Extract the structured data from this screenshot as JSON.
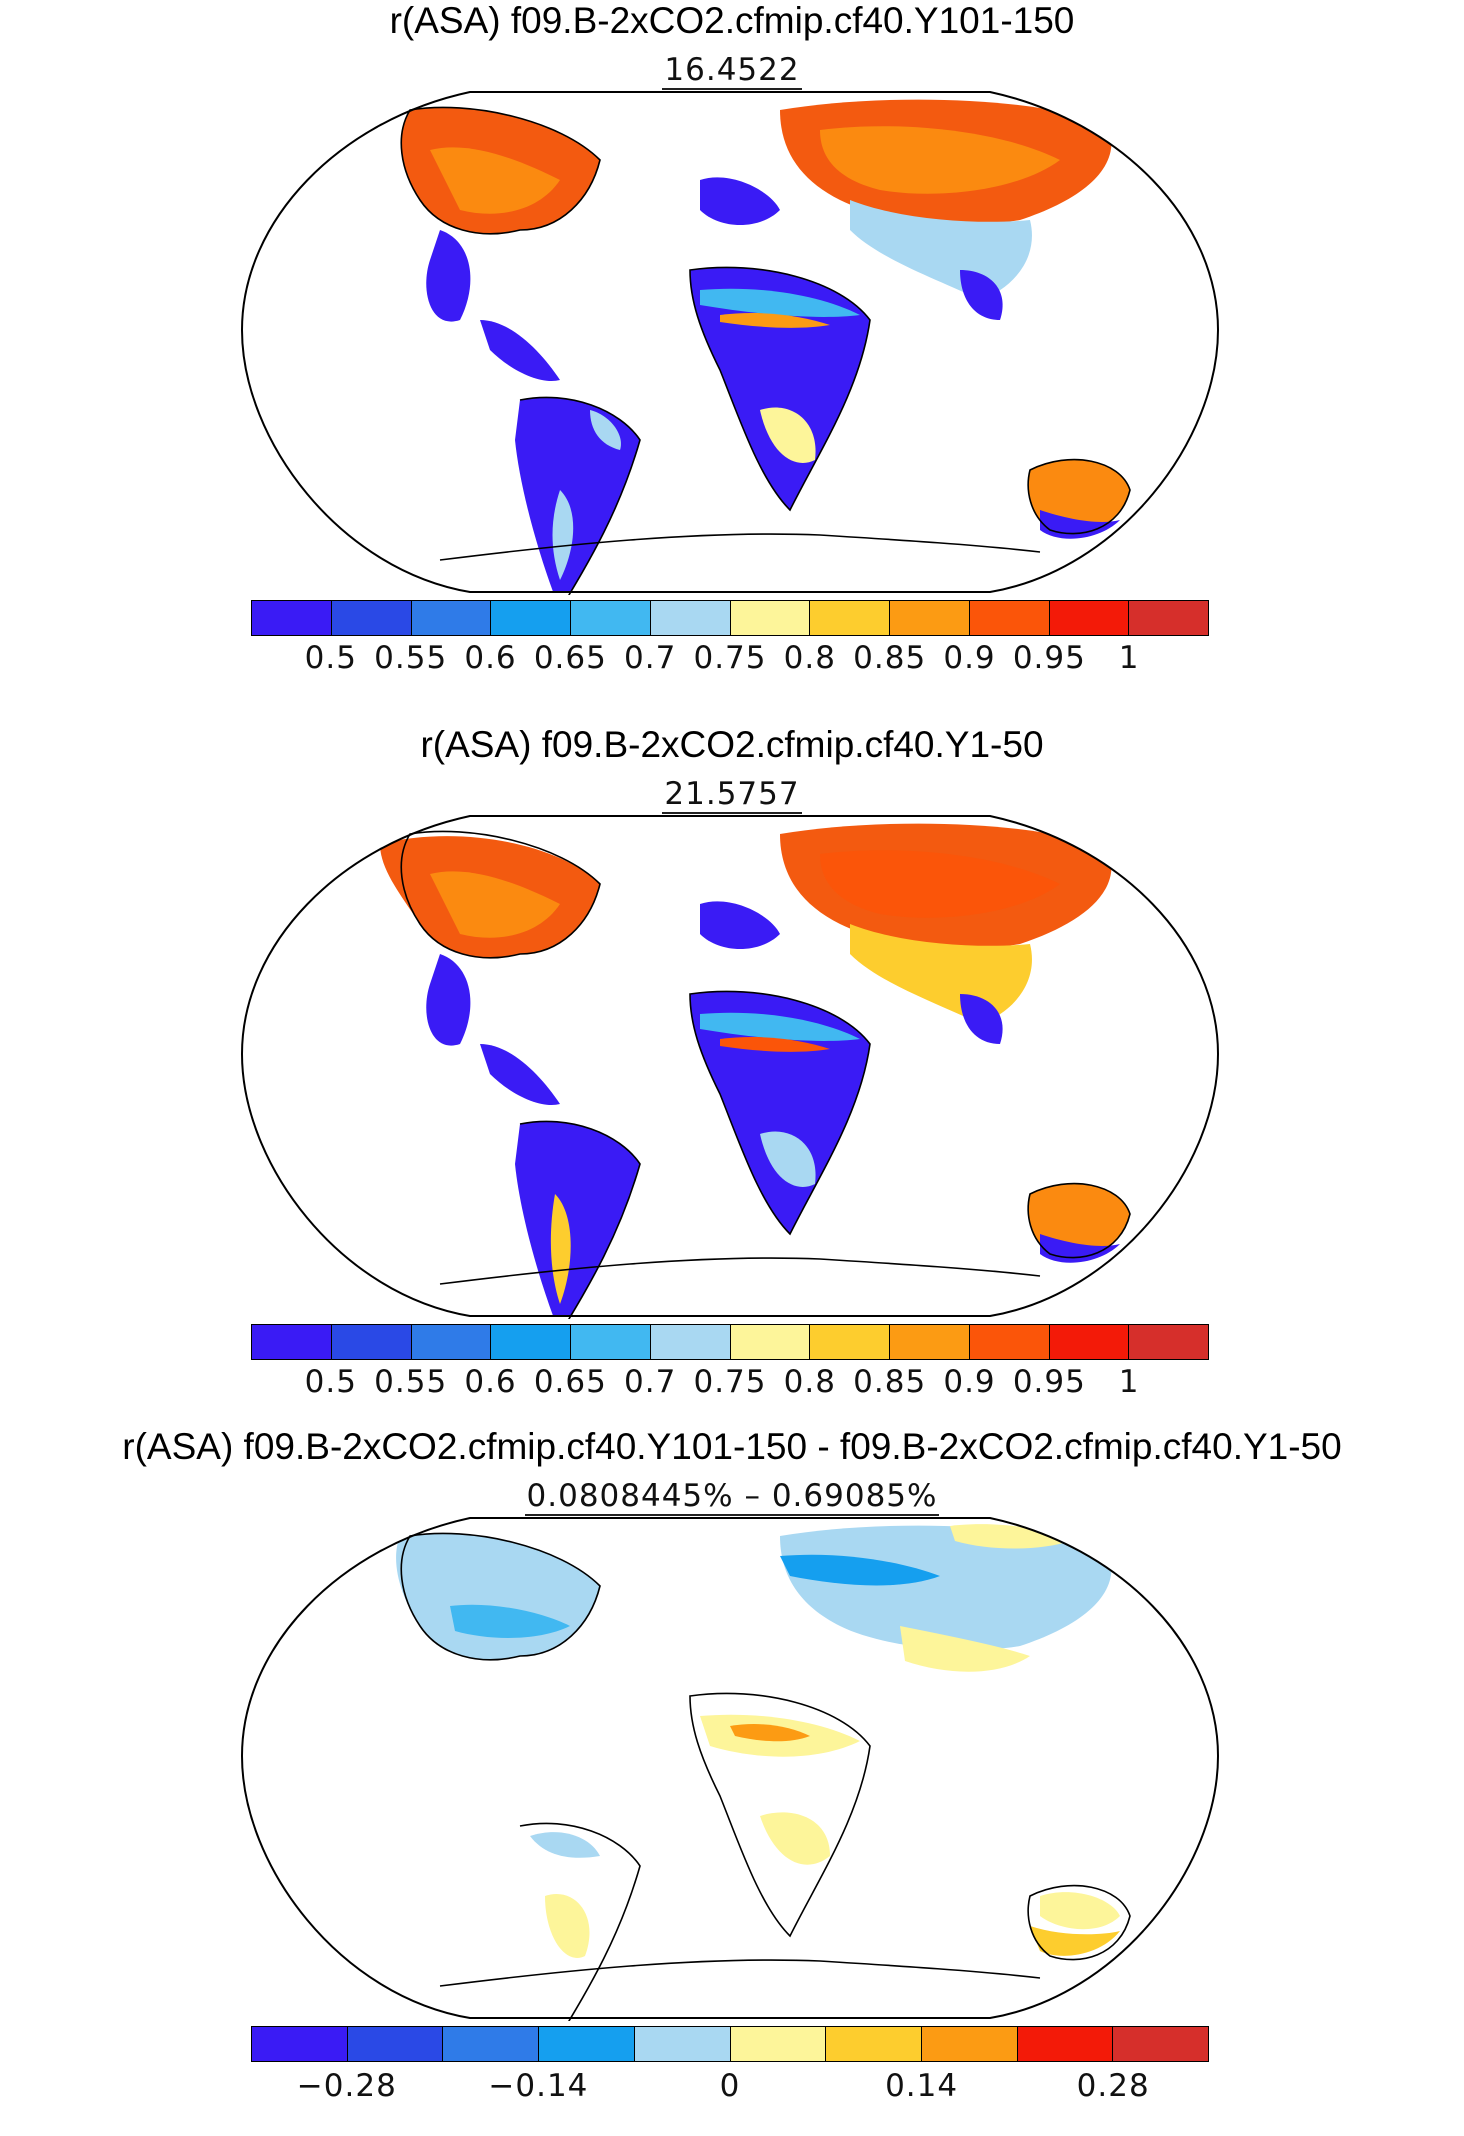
{
  "panels": [
    {
      "title": "r(ASA) f09.B-2xCO2.cfmip.cf40.Y101-150",
      "subtitle": "16.4522",
      "colorbar": {
        "colors": [
          "#3a1bf5",
          "#2a49e6",
          "#2f7be8",
          "#159fef",
          "#41b8f1",
          "#a9d8f2",
          "#fdf59a",
          "#fdcd2e",
          "#fc9b13",
          "#fb5509",
          "#f31a08",
          "#d62f2b"
        ],
        "tick_labels": [
          "0.5",
          "0.55",
          "0.6",
          "0.65",
          "0.7",
          "0.75",
          "0.8",
          "0.85",
          "0.9",
          "0.95",
          "1"
        ]
      }
    },
    {
      "title": "r(ASA) f09.B-2xCO2.cfmip.cf40.Y1-50",
      "subtitle": "21.5757",
      "colorbar": {
        "colors": [
          "#3a1bf5",
          "#2a49e6",
          "#2f7be8",
          "#159fef",
          "#41b8f1",
          "#a9d8f2",
          "#fdf59a",
          "#fdcd2e",
          "#fc9b13",
          "#fb5509",
          "#f31a08",
          "#d62f2b"
        ],
        "tick_labels": [
          "0.5",
          "0.55",
          "0.6",
          "0.65",
          "0.7",
          "0.75",
          "0.8",
          "0.85",
          "0.9",
          "0.95",
          "1"
        ]
      }
    },
    {
      "title": "r(ASA) f09.B-2xCO2.cfmip.cf40.Y101-150 - f09.B-2xCO2.cfmip.cf40.Y1-50",
      "subtitle": "0.0808445% – 0.69085%",
      "colorbar": {
        "colors": [
          "#3a1bf5",
          "#2a49e6",
          "#2f7be8",
          "#159fef",
          "#a9d8f2",
          "#fdf59a",
          "#fdcd2e",
          "#fc9b13",
          "#f31a08",
          "#d62f2b"
        ],
        "tick_labels": [
          "−0.28",
          "−0.14",
          "0",
          "0.14",
          "0.28"
        ]
      }
    }
  ]
}
